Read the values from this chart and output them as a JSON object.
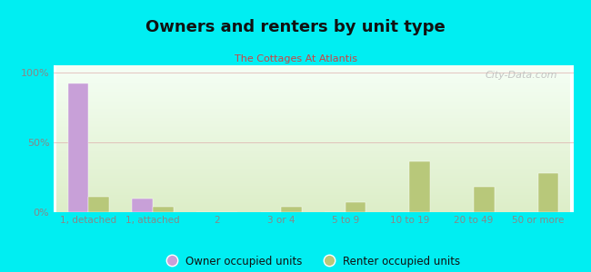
{
  "title": "Owners and renters by unit type",
  "subtitle": "The Cottages At Atlantis",
  "categories": [
    "1, detached",
    "1, attached",
    "2",
    "3 or 4",
    "5 to 9",
    "10 to 19",
    "20 to 49",
    "50 or more"
  ],
  "owner_values": [
    92,
    10,
    0,
    0,
    0,
    0,
    0,
    0
  ],
  "renter_values": [
    11,
    4,
    0,
    4,
    7,
    36,
    18,
    28
  ],
  "owner_color": "#c8a0d8",
  "renter_color": "#b8c87a",
  "background_outer": "#00eef2",
  "background_inner_top": "#f5fff5",
  "background_inner_bottom": "#ddeec8",
  "ylabel_ticks": [
    "0%",
    "50%",
    "100%"
  ],
  "ytick_values": [
    0,
    50,
    100
  ],
  "ylim": [
    0,
    105
  ],
  "bar_width": 0.32,
  "legend_owner": "Owner occupied units",
  "legend_renter": "Renter occupied units",
  "watermark": "City-Data.com",
  "title_color": "#111111",
  "subtitle_color": "#cc4444",
  "tick_color": "#888888",
  "grid_color": "#ddaaaa",
  "watermark_color": "#bbbbbb"
}
